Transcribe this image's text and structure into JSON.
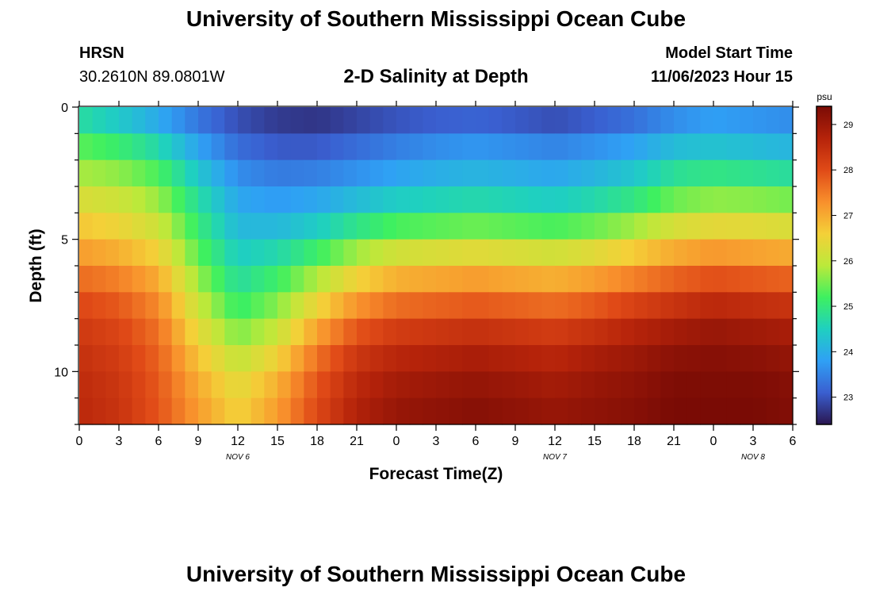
{
  "header": {
    "title": "University of Southern Mississippi Ocean Cube",
    "station": "HRSN",
    "coordinates": "30.2610N  89.0801W",
    "subtitle": "2-D Salinity at Depth",
    "model_start_label": "Model Start Time",
    "model_start_value": "11/06/2023 Hour 15"
  },
  "footer": {
    "title": "University of Southern Mississippi Ocean Cube"
  },
  "chart_data": {
    "type": "heatmap",
    "title": "2-D Salinity at Depth",
    "xlabel": "Forecast Time(Z)",
    "ylabel": "Depth (ft)",
    "x_range_hours": [
      0,
      54
    ],
    "y_range_ft": [
      0,
      12
    ],
    "x_tick_labels": [
      "0",
      "3",
      "6",
      "9",
      "12",
      "15",
      "18",
      "21",
      "0",
      "3",
      "6",
      "9",
      "12",
      "15",
      "18",
      "21",
      "0",
      "3",
      "6"
    ],
    "y_tick_labels": [
      "0",
      "5",
      "10"
    ],
    "date_labels": [
      {
        "text": "NOV 6",
        "hour": 12
      },
      {
        "text": "NOV 7",
        "hour": 36
      },
      {
        "text": "NOV 8",
        "hour": 51
      }
    ],
    "colorbar": {
      "unit": "psu",
      "min": 22.4,
      "max": 29.4,
      "ticks": [
        "23",
        "24",
        "25",
        "26",
        "27",
        "28",
        "29"
      ],
      "stops": [
        "#2a1650",
        "#3a5fd0",
        "#2fa0f5",
        "#1fd0c0",
        "#3ef060",
        "#bce93a",
        "#f4d038",
        "#f88f2c",
        "#e04a17",
        "#b5230a",
        "#7a0b05"
      ]
    },
    "time_hours": [
      0,
      3,
      6,
      9,
      12,
      15,
      18,
      21,
      24,
      27,
      30,
      33,
      36,
      39,
      42,
      45,
      48,
      51,
      54
    ],
    "depth_levels_ft": [
      0,
      1,
      2,
      3,
      4,
      5,
      6,
      7,
      8,
      9,
      10,
      11,
      12
    ],
    "salinity_psu": [
      [
        24.4,
        24.0,
        23.6,
        23.1,
        22.8,
        22.6,
        22.5,
        22.6,
        22.7,
        22.8,
        22.8,
        22.7,
        22.6,
        22.8,
        23.0,
        23.3,
        23.6,
        23.5,
        23.4
      ],
      [
        25.1,
        24.8,
        24.3,
        23.6,
        23.1,
        22.9,
        22.9,
        23.1,
        23.3,
        23.4,
        23.5,
        23.4,
        23.3,
        23.4,
        23.6,
        23.9,
        24.0,
        23.9,
        23.8
      ],
      [
        25.6,
        25.4,
        25.0,
        24.1,
        23.4,
        23.2,
        23.2,
        23.4,
        23.6,
        23.8,
        23.9,
        23.8,
        23.7,
        23.9,
        24.1,
        24.5,
        24.6,
        24.5,
        24.4
      ],
      [
        26.0,
        25.9,
        25.5,
        24.6,
        23.8,
        23.6,
        23.7,
        23.9,
        24.1,
        24.2,
        24.3,
        24.2,
        24.1,
        24.3,
        24.6,
        25.1,
        25.3,
        25.2,
        25.1
      ],
      [
        26.5,
        26.3,
        25.9,
        24.9,
        24.0,
        23.9,
        24.1,
        24.5,
        24.8,
        24.9,
        25.0,
        24.9,
        24.8,
        25.0,
        25.3,
        25.8,
        26.0,
        26.0,
        25.9
      ],
      [
        26.9,
        26.7,
        26.3,
        25.2,
        24.3,
        24.4,
        24.8,
        25.3,
        25.7,
        25.8,
        25.9,
        25.8,
        25.7,
        25.9,
        26.2,
        26.6,
        26.8,
        26.7,
        26.6
      ],
      [
        27.4,
        27.2,
        26.8,
        25.5,
        24.6,
        24.9,
        25.5,
        26.2,
        26.6,
        26.7,
        26.8,
        26.7,
        26.6,
        26.8,
        27.1,
        27.4,
        27.6,
        27.5,
        27.4
      ],
      [
        27.9,
        27.7,
        27.2,
        25.9,
        24.9,
        25.4,
        26.2,
        26.9,
        27.3,
        27.4,
        27.5,
        27.4,
        27.3,
        27.5,
        27.8,
        28.1,
        28.3,
        28.2,
        28.1
      ],
      [
        28.2,
        28.0,
        27.5,
        26.2,
        25.3,
        25.8,
        26.8,
        27.6,
        28.0,
        28.1,
        28.2,
        28.1,
        28.0,
        28.2,
        28.5,
        28.7,
        28.9,
        28.8,
        28.7
      ],
      [
        28.4,
        28.2,
        27.7,
        26.6,
        25.8,
        26.3,
        27.4,
        28.2,
        28.5,
        28.6,
        28.7,
        28.6,
        28.5,
        28.7,
        28.9,
        29.1,
        29.2,
        29.1,
        29.0
      ],
      [
        28.5,
        28.3,
        27.8,
        26.9,
        26.2,
        26.8,
        27.8,
        28.5,
        28.8,
        28.9,
        29.0,
        28.9,
        28.8,
        29.0,
        29.1,
        29.3,
        29.3,
        29.3,
        29.2
      ],
      [
        28.6,
        28.4,
        27.9,
        27.1,
        26.5,
        27.1,
        28.0,
        28.7,
        29.0,
        29.1,
        29.2,
        29.1,
        29.0,
        29.1,
        29.2,
        29.4,
        29.4,
        29.4,
        29.3
      ],
      [
        28.6,
        28.4,
        27.9,
        27.2,
        26.6,
        27.2,
        28.1,
        28.8,
        29.1,
        29.2,
        29.3,
        29.2,
        29.1,
        29.2,
        29.3,
        29.4,
        29.4,
        29.4,
        29.3
      ]
    ]
  }
}
